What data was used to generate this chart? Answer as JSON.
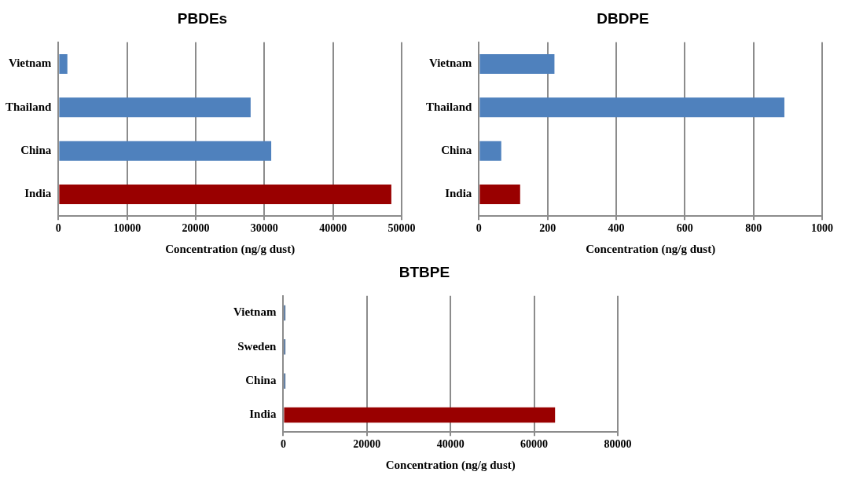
{
  "chart_data": [
    {
      "type": "bar",
      "orientation": "horizontal",
      "title": "PBDEs",
      "xlabel": "Concentration (ng/g dust)",
      "categories": [
        "Vietnam",
        "Thailand",
        "China",
        "India"
      ],
      "values": [
        1300,
        28000,
        31000,
        48500
      ],
      "colors": [
        "#4f81bd",
        "#4f81bd",
        "#4f81bd",
        "#990000"
      ],
      "xlim": [
        0,
        50000
      ],
      "xticks": [
        0,
        10000,
        20000,
        30000,
        40000,
        50000
      ],
      "grid": "x"
    },
    {
      "type": "bar",
      "orientation": "horizontal",
      "title": "DBDPE",
      "xlabel": "Concentration (ng/g dust)",
      "categories": [
        "Vietnam",
        "Thailand",
        "China",
        "India"
      ],
      "values": [
        220,
        890,
        65,
        120
      ],
      "colors": [
        "#4f81bd",
        "#4f81bd",
        "#4f81bd",
        "#990000"
      ],
      "xlim": [
        0,
        1000
      ],
      "xticks": [
        0,
        200,
        400,
        600,
        800,
        1000
      ],
      "grid": "x"
    },
    {
      "type": "bar",
      "orientation": "horizontal",
      "title": "BTBPE",
      "xlabel": "Concentration (ng/g dust)",
      "categories": [
        "Vietnam",
        "Sweden",
        "China",
        "India"
      ],
      "values": [
        500,
        500,
        500,
        65000
      ],
      "colors": [
        "#385d8a",
        "#385d8a",
        "#385d8a",
        "#990000"
      ],
      "xlim": [
        0,
        80000
      ],
      "xticks": [
        0,
        20000,
        40000,
        60000,
        80000
      ],
      "grid": "x"
    }
  ]
}
